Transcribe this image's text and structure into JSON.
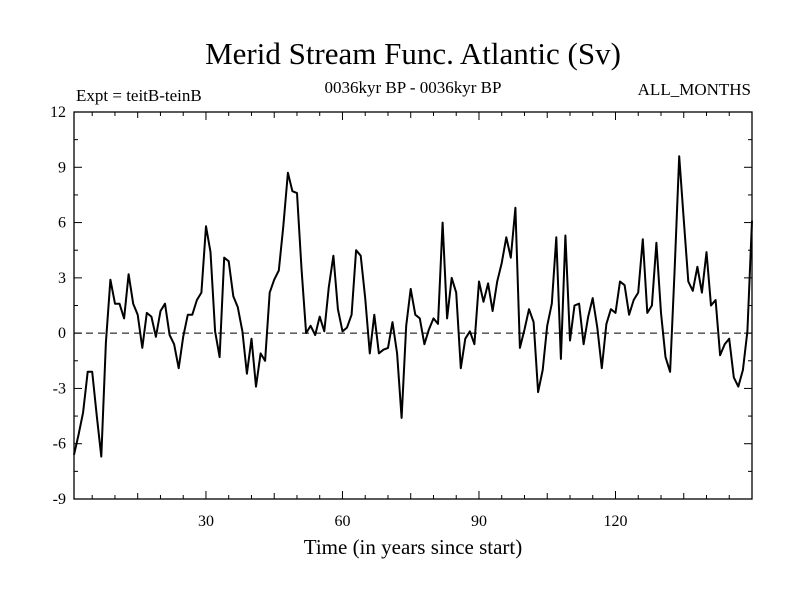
{
  "header": {
    "title": "Merid Stream Func. Atlantic (Sv)",
    "left_label": "Expt = teitB-teinB",
    "center_label": "0036kyr BP - 0036kyr BP",
    "right_label": "ALL_MONTHS"
  },
  "chart_data": {
    "type": "line",
    "title": "Merid Stream Func. Atlantic (Sv)",
    "xlabel": "Time (in years since start)",
    "ylabel": "",
    "xlim": [
      1,
      150
    ],
    "ylim": [
      -9,
      12
    ],
    "xticks": [
      30,
      60,
      90,
      120
    ],
    "xtick_labels": [
      "30",
      "60",
      "90",
      "120"
    ],
    "yticks": [
      -9,
      -6,
      -3,
      0,
      3,
      6,
      9,
      12
    ],
    "ytick_labels": [
      "-9",
      "-6",
      "-3",
      "0",
      "3",
      "6",
      "9",
      "12"
    ],
    "reference_line": {
      "y": 0,
      "style": "dashed"
    },
    "series": [
      {
        "name": "teitB-teinB",
        "x": [
          1,
          2,
          3,
          4,
          5,
          6,
          7,
          8,
          9,
          10,
          11,
          12,
          13,
          14,
          15,
          16,
          17,
          18,
          19,
          20,
          21,
          22,
          23,
          24,
          25,
          26,
          27,
          28,
          29,
          30,
          31,
          32,
          33,
          34,
          35,
          36,
          37,
          38,
          39,
          40,
          41,
          42,
          43,
          44,
          45,
          46,
          47,
          48,
          49,
          50,
          51,
          52,
          53,
          54,
          55,
          56,
          57,
          58,
          59,
          60,
          61,
          62,
          63,
          64,
          65,
          66,
          67,
          68,
          69,
          70,
          71,
          72,
          73,
          74,
          75,
          76,
          77,
          78,
          79,
          80,
          81,
          82,
          83,
          84,
          85,
          86,
          87,
          88,
          89,
          90,
          91,
          92,
          93,
          94,
          95,
          96,
          97,
          98,
          99,
          100,
          101,
          102,
          103,
          104,
          105,
          106,
          107,
          108,
          109,
          110,
          111,
          112,
          113,
          114,
          115,
          116,
          117,
          118,
          119,
          120,
          121,
          122,
          123,
          124,
          125,
          126,
          127,
          128,
          129,
          130,
          131,
          132,
          133,
          134,
          135,
          136,
          137,
          138,
          139,
          140,
          141,
          142,
          143,
          144,
          145,
          146,
          147,
          148,
          149,
          150
        ],
        "values": [
          -6.6,
          -5.5,
          -4.3,
          -2.1,
          -2.1,
          -4.5,
          -6.7,
          -0.5,
          2.9,
          1.6,
          1.6,
          0.8,
          3.2,
          1.6,
          1.0,
          -0.8,
          1.1,
          0.9,
          -0.2,
          1.2,
          1.6,
          -0.1,
          -0.6,
          -1.9,
          -0.2,
          1.0,
          1.0,
          1.8,
          2.2,
          5.8,
          4.4,
          0.1,
          -1.3,
          4.1,
          3.9,
          2.0,
          1.4,
          0.1,
          -2.2,
          -0.3,
          -2.9,
          -1.1,
          -1.5,
          2.2,
          2.9,
          3.4,
          5.8,
          8.7,
          7.7,
          7.6,
          3.5,
          0.0,
          0.4,
          -0.1,
          0.9,
          0.1,
          2.5,
          4.2,
          1.3,
          0.1,
          0.3,
          1.0,
          4.5,
          4.2,
          1.9,
          -1.1,
          1.0,
          -1.1,
          -0.9,
          -0.8,
          0.6,
          -1.1,
          -4.6,
          0.4,
          2.4,
          1.0,
          0.8,
          -0.6,
          0.2,
          0.8,
          0.5,
          6.0,
          0.8,
          3.0,
          2.2,
          -1.9,
          -0.3,
          0.1,
          -0.6,
          2.8,
          1.7,
          2.7,
          1.2,
          2.8,
          3.8,
          5.2,
          4.1,
          6.8,
          -0.8,
          0.2,
          1.3,
          0.6,
          -3.2,
          -2.0,
          0.4,
          1.6,
          5.2,
          -1.4,
          5.3,
          -0.4,
          1.5,
          1.6,
          -0.6,
          0.9,
          1.9,
          0.3,
          -1.9,
          0.5,
          1.3,
          1.1,
          2.8,
          2.6,
          1.0,
          1.8,
          2.2,
          5.1,
          1.1,
          1.5,
          4.9,
          1.1,
          -1.3,
          -2.1,
          3.4,
          9.6,
          6.2,
          2.8,
          2.3,
          3.6,
          2.2,
          4.4,
          1.5,
          1.8,
          -1.2,
          -0.6,
          -0.3,
          -2.4,
          -2.9,
          -2.0,
          0.1,
          6.1
        ]
      }
    ]
  }
}
